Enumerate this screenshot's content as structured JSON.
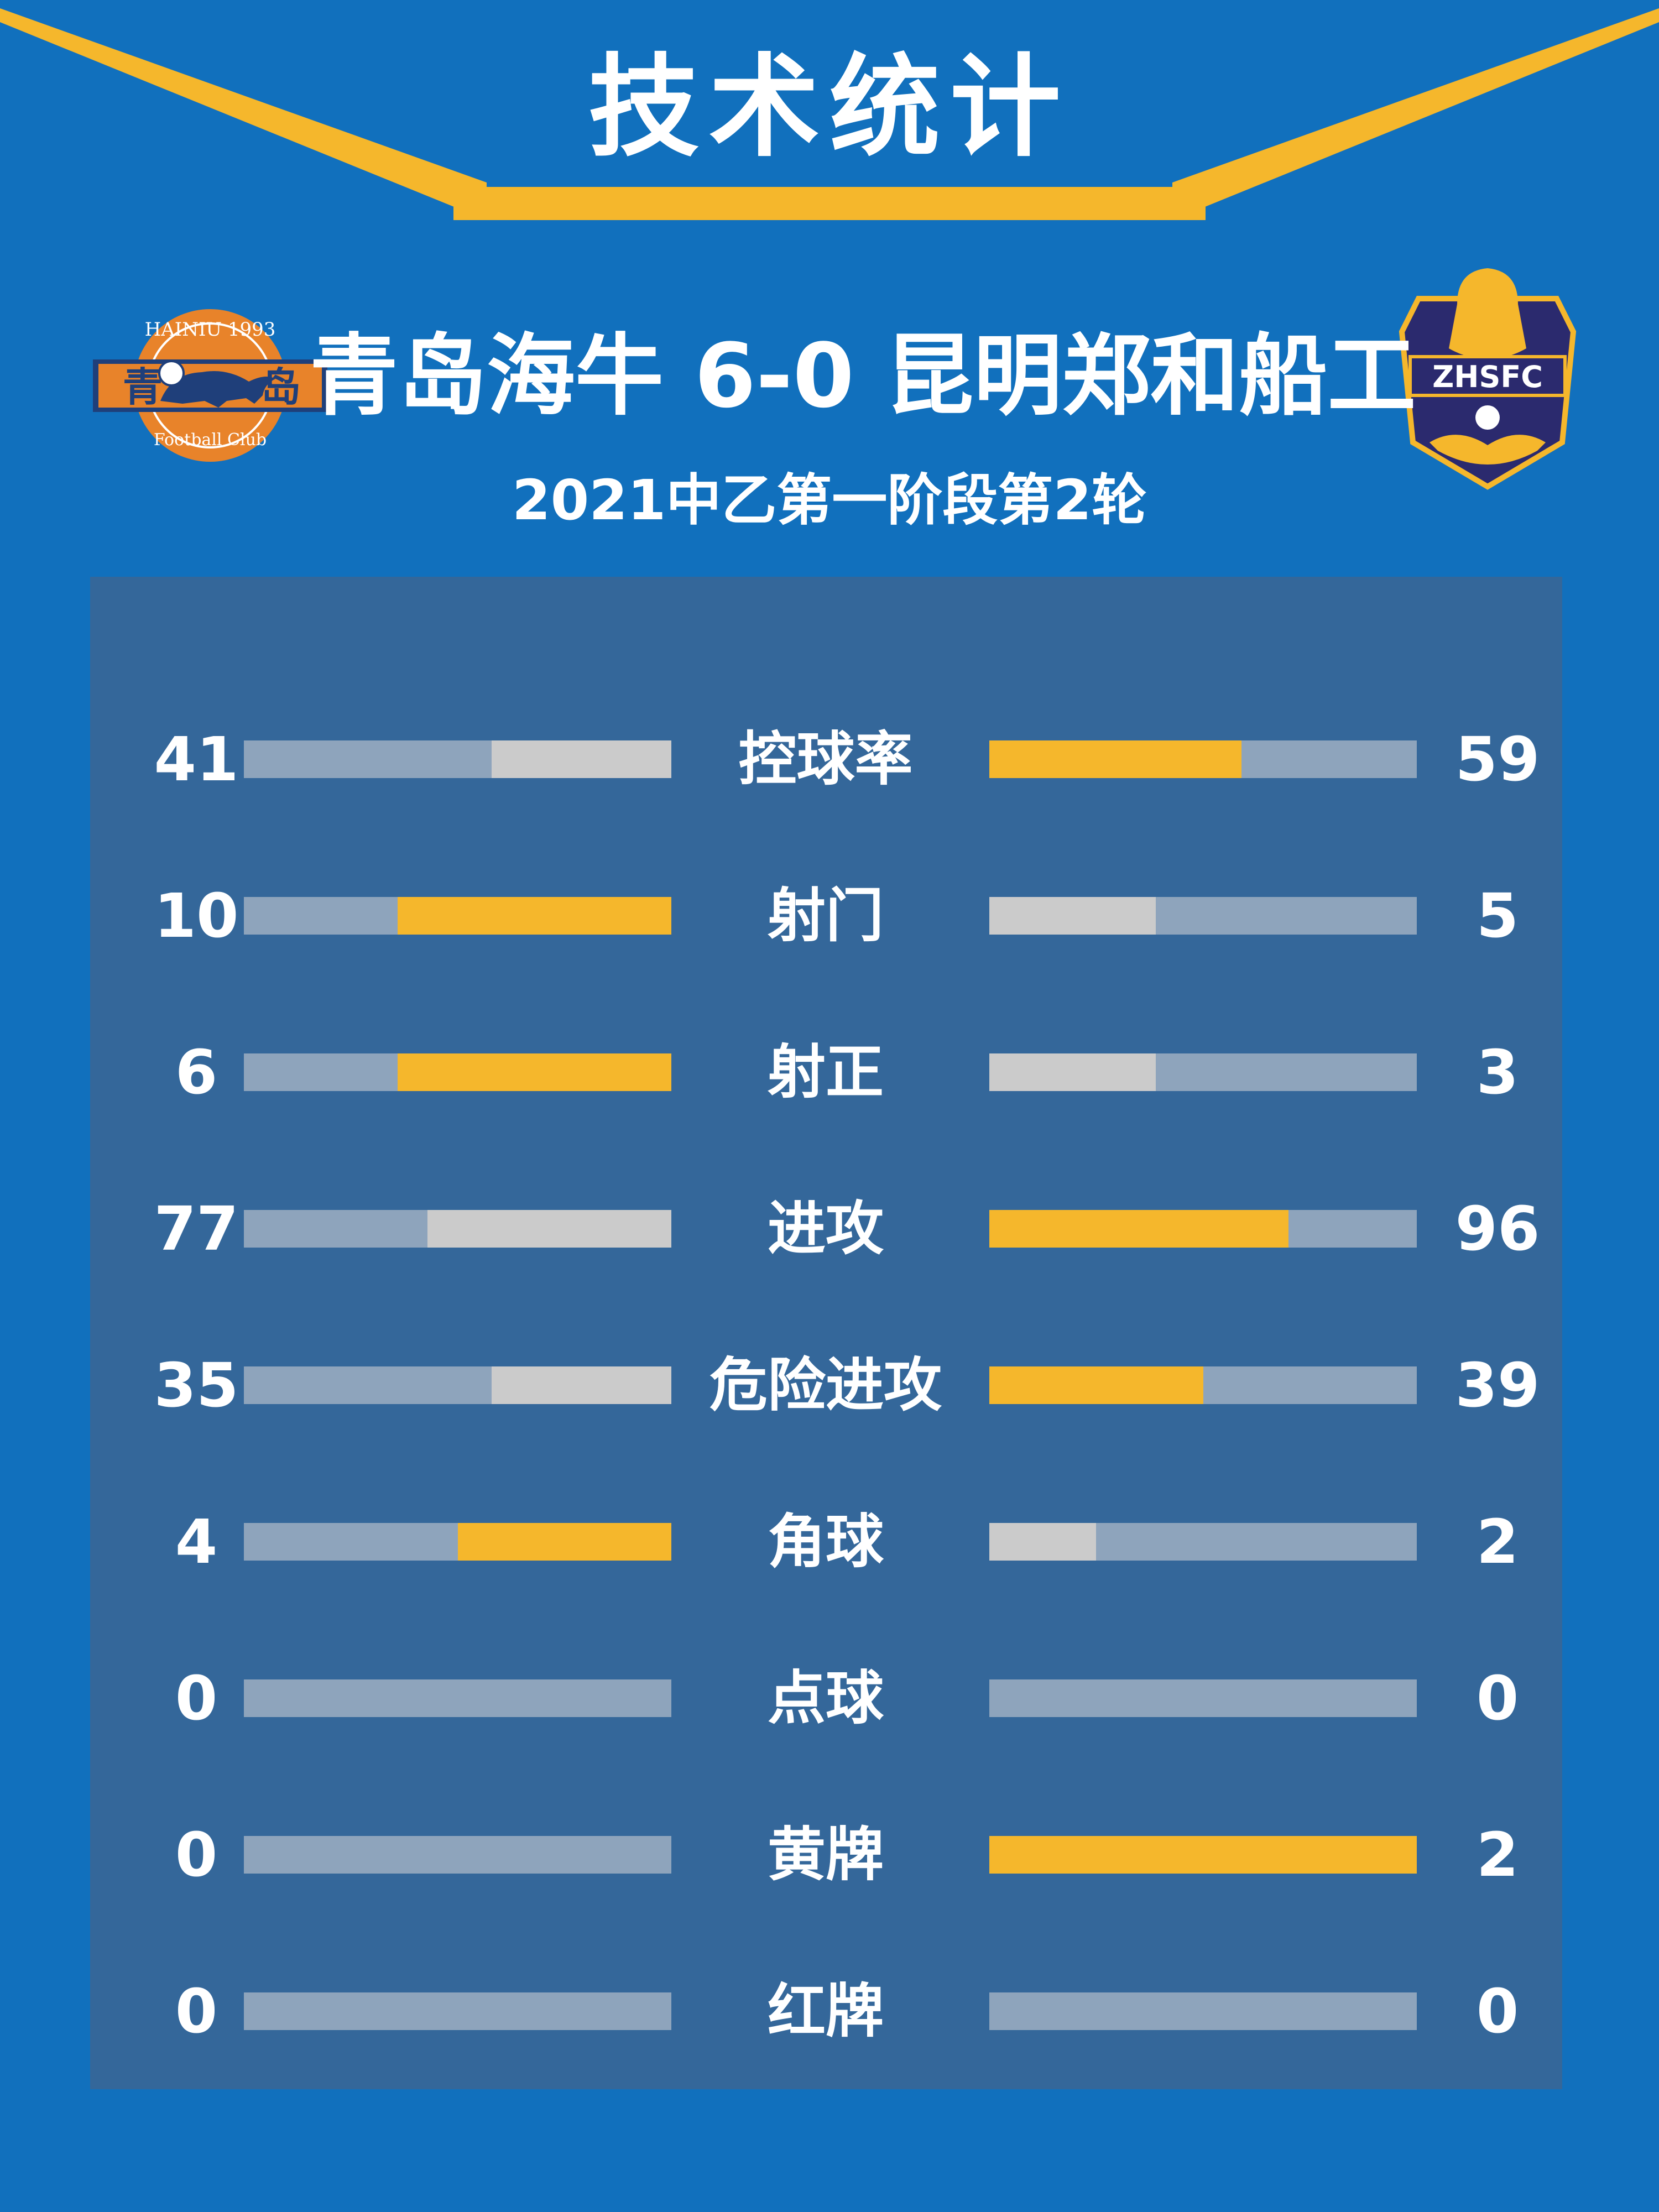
{
  "header": {
    "title": "技术统计"
  },
  "match": {
    "home_team": "青岛海牛",
    "score": "6-0",
    "away_team": "昆明郑和船工",
    "competition": "2021中乙第一阶段第2轮"
  },
  "home_logo": {
    "arc_top": "HAINIU 1993",
    "left_char": "青",
    "right_char": "岛",
    "arc_bottom": "Football Club"
  },
  "away_logo": {
    "text": "ZHSFC"
  },
  "colors": {
    "background": "#1170bd",
    "panel": "#34679a",
    "bar_track": "#8ea4bc",
    "leader": "#f5b72c",
    "trailer": "#cbcbcb"
  },
  "stats": [
    {
      "label": "控球率",
      "home": "41",
      "away": "59",
      "home_fill": 0.42,
      "away_fill": 0.59,
      "home_color": "#cbcbcb",
      "away_color": "#f5b72c"
    },
    {
      "label": "射门",
      "home": "10",
      "away": "5",
      "home_fill": 0.64,
      "away_fill": 0.39,
      "home_color": "#f5b72c",
      "away_color": "#cbcbcb"
    },
    {
      "label": "射正",
      "home": "6",
      "away": "3",
      "home_fill": 0.64,
      "away_fill": 0.39,
      "home_color": "#f5b72c",
      "away_color": "#cbcbcb"
    },
    {
      "label": "进攻",
      "home": "77",
      "away": "96",
      "home_fill": 0.57,
      "away_fill": 0.7,
      "home_color": "#cbcbcb",
      "away_color": "#f5b72c"
    },
    {
      "label": "危险进攻",
      "home": "35",
      "away": "39",
      "home_fill": 0.42,
      "away_fill": 0.5,
      "home_color": "#cbcbcb",
      "away_color": "#f5b72c"
    },
    {
      "label": "角球",
      "home": "4",
      "away": "2",
      "home_fill": 0.5,
      "away_fill": 0.25,
      "home_color": "#f5b72c",
      "away_color": "#cbcbcb"
    },
    {
      "label": "点球",
      "home": "0",
      "away": "0",
      "home_fill": 0,
      "away_fill": 0,
      "home_color": "#cbcbcb",
      "away_color": "#cbcbcb"
    },
    {
      "label": "黄牌",
      "home": "0",
      "away": "2",
      "home_fill": 0,
      "away_fill": 1.0,
      "home_color": "#cbcbcb",
      "away_color": "#f5b72c"
    },
    {
      "label": "红牌",
      "home": "0",
      "away": "0",
      "home_fill": 0,
      "away_fill": 0,
      "home_color": "#cbcbcb",
      "away_color": "#cbcbcb"
    }
  ]
}
